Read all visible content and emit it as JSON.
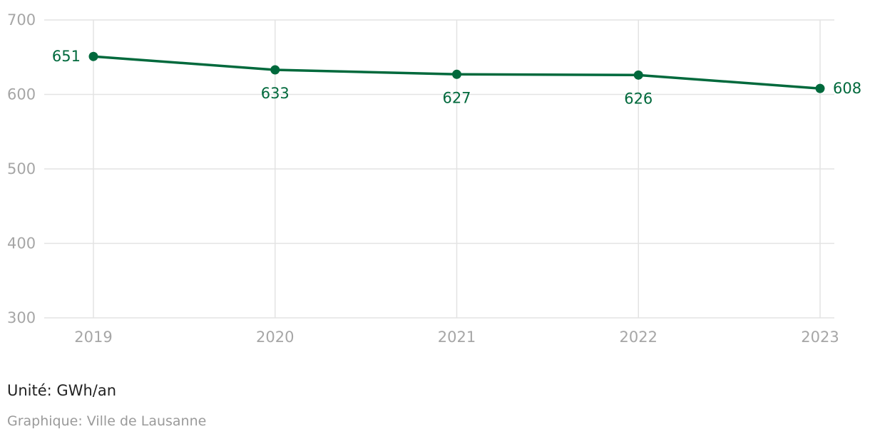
{
  "chart_data": {
    "type": "line",
    "x": [
      "2019",
      "2020",
      "2021",
      "2022",
      "2023"
    ],
    "series": [
      {
        "values": [
          651,
          633,
          627,
          626,
          608
        ]
      }
    ],
    "data_labels": [
      "651",
      "633",
      "627",
      "626",
      "608"
    ],
    "y_ticks": [
      300,
      400,
      500,
      600,
      700
    ],
    "ylim": [
      300,
      700
    ],
    "grid": true,
    "line_color": "#00693c"
  },
  "footer": {
    "unit": "Unité: GWh/an",
    "source": "Graphique: Ville de Lausanne"
  }
}
